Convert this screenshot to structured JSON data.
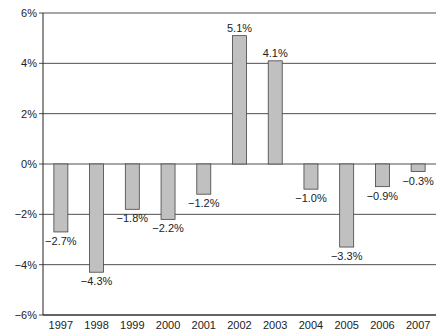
{
  "chart_data": {
    "type": "bar",
    "categories": [
      "1997",
      "1998",
      "1999",
      "2000",
      "2001",
      "2002",
      "2003",
      "2004",
      "2005",
      "2006",
      "2007"
    ],
    "values": [
      -2.7,
      -4.3,
      -1.8,
      -2.2,
      -1.2,
      5.1,
      4.1,
      -1.0,
      -3.3,
      -0.9,
      -0.3
    ],
    "value_labels": [
      "−2.7%",
      "−4.3%",
      "−1.8%",
      "−2.2%",
      "−1.2%",
      "5.1%",
      "4.1%",
      "−1.0%",
      "−3.3%",
      "−0.9%",
      "−0.3%"
    ],
    "color": "#c0c0c0",
    "ylim": [
      -6,
      6
    ],
    "yticks": [
      {
        "value": -6,
        "label": "−6%"
      },
      {
        "value": -4,
        "label": "−4%"
      },
      {
        "value": -2,
        "label": "−2%"
      },
      {
        "value": 0,
        "label": "0%"
      },
      {
        "value": 2,
        "label": "2%"
      },
      {
        "value": 4,
        "label": "4%"
      },
      {
        "value": 6,
        "label": "6%"
      }
    ],
    "grid": true,
    "data_labels": true
  }
}
